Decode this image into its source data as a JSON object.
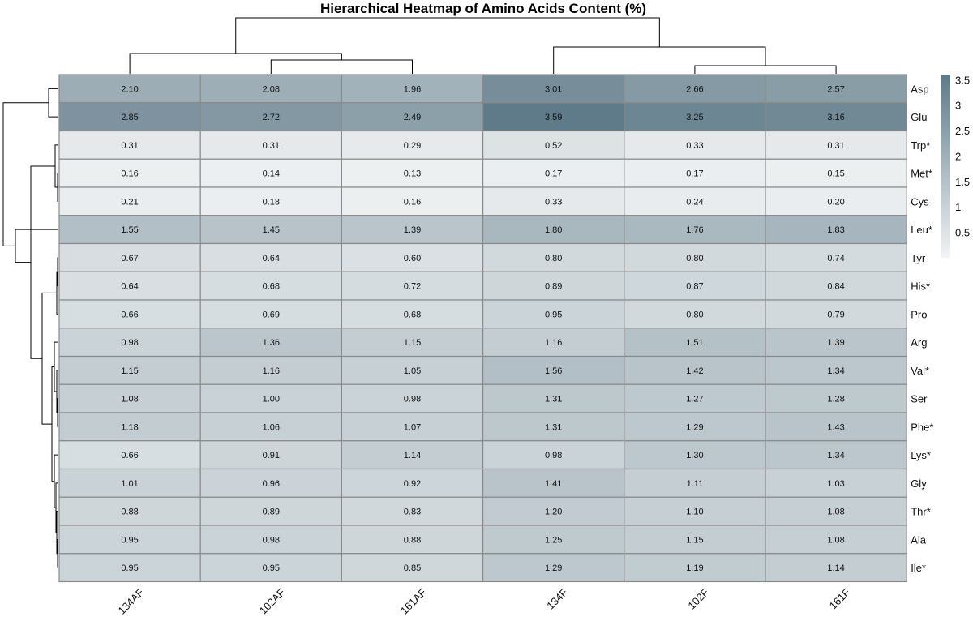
{
  "chart_data": {
    "type": "heatmap",
    "title": "Hierarchical Heatmap of Amino Acids Content (%)",
    "columns": [
      "134AF",
      "102AF",
      "161AF",
      "134F",
      "102F",
      "161F"
    ],
    "rows": [
      "Asp",
      "Glu",
      "Trp*",
      "Met*",
      "Cys",
      "Leu*",
      "Tyr",
      "His*",
      "Pro",
      "Arg",
      "Val*",
      "Ser",
      "Phe*",
      "Lys*",
      "Gly",
      "Thr*",
      "Ala",
      "Ile*"
    ],
    "values": [
      [
        "2.10",
        "2.08",
        "1.96",
        "3.01",
        "2.66",
        "2.57"
      ],
      [
        "2.85",
        "2.72",
        "2.49",
        "3.59",
        "3.25",
        "3.16"
      ],
      [
        "0.31",
        "0.31",
        "0.29",
        "0.52",
        "0.33",
        "0.31"
      ],
      [
        "0.16",
        "0.14",
        "0.13",
        "0.17",
        "0.17",
        "0.15"
      ],
      [
        "0.21",
        "0.18",
        "0.16",
        "0.33",
        "0.24",
        "0.20"
      ],
      [
        "1.55",
        "1.45",
        "1.39",
        "1.80",
        "1.76",
        "1.83"
      ],
      [
        "0.67",
        "0.64",
        "0.60",
        "0.80",
        "0.80",
        "0.74"
      ],
      [
        "0.64",
        "0.68",
        "0.72",
        "0.89",
        "0.87",
        "0.84"
      ],
      [
        "0.66",
        "0.69",
        "0.68",
        "0.95",
        "0.80",
        "0.79"
      ],
      [
        "0.98",
        "1.36",
        "1.15",
        "1.16",
        "1.51",
        "1.39"
      ],
      [
        "1.15",
        "1.16",
        "1.05",
        "1.56",
        "1.42",
        "1.34"
      ],
      [
        "1.08",
        "1.00",
        "0.98",
        "1.31",
        "1.27",
        "1.28"
      ],
      [
        "1.18",
        "1.06",
        "1.07",
        "1.31",
        "1.29",
        "1.43"
      ],
      [
        "0.66",
        "0.91",
        "1.14",
        "0.98",
        "1.30",
        "1.34"
      ],
      [
        "1.01",
        "0.96",
        "0.92",
        "1.41",
        "1.11",
        "1.03"
      ],
      [
        "0.88",
        "0.89",
        "0.83",
        "1.20",
        "1.10",
        "1.08"
      ],
      [
        "0.95",
        "0.98",
        "0.88",
        "1.25",
        "1.15",
        "1.08"
      ],
      [
        "0.95",
        "0.95",
        "0.85",
        "1.29",
        "1.19",
        "1.14"
      ]
    ],
    "color_scale": {
      "min": 0,
      "max": 3.6,
      "low_color": "#f2f4f5",
      "high_color": "#5f7a88"
    },
    "legend": {
      "ticks": [
        "3.5",
        "3",
        "2.5",
        "2",
        "1.5",
        "1",
        "0.5"
      ],
      "placement": "top-right"
    },
    "grid_color": "#8a8a8a",
    "dendrogram_rows": true,
    "dendrogram_columns": true
  }
}
